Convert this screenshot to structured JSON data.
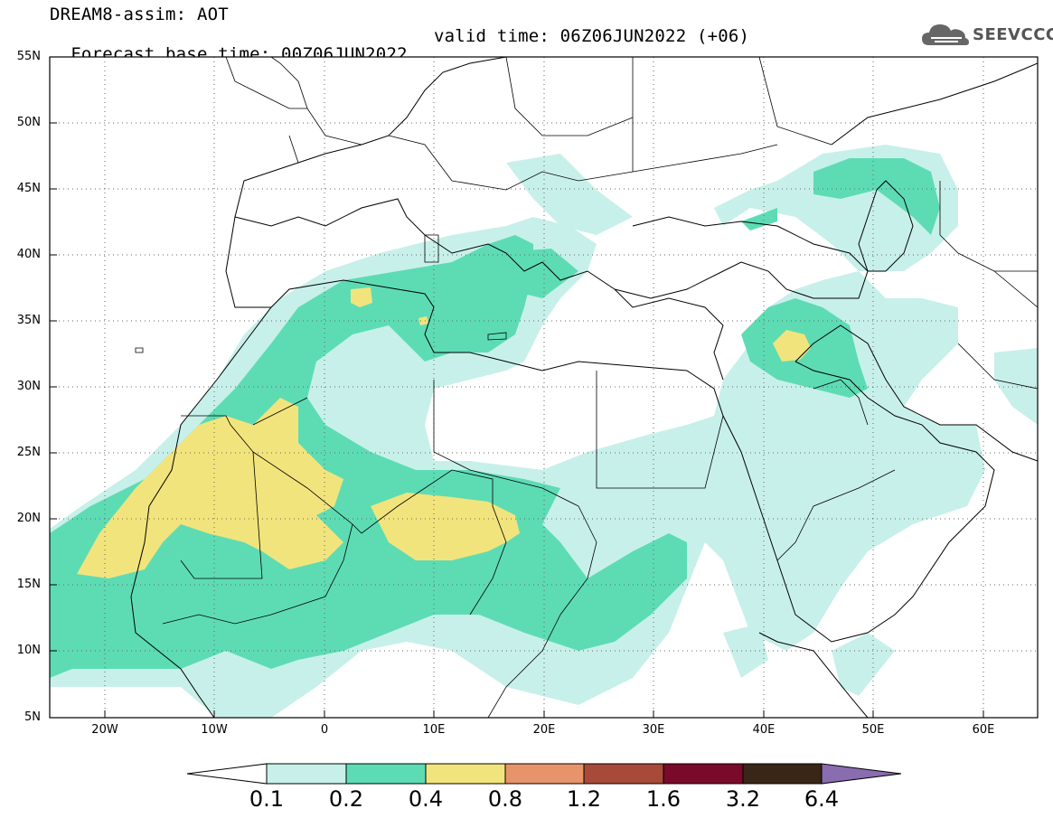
{
  "header": {
    "line1": "DREAM8-assim: AOT",
    "base_time": "Forecast base time: 00Z06JUN2022",
    "valid_time": "valid time: 06Z06JUN2022 (+06)"
  },
  "logo": {
    "text": "SEEVCCC",
    "icon": "cloud-icon"
  },
  "map": {
    "lat_labels": [
      "55N",
      "50N",
      "45N",
      "40N",
      "35N",
      "30N",
      "25N",
      "20N",
      "15N",
      "10N",
      "5N"
    ],
    "lon_labels": [
      "20W",
      "10W",
      "0",
      "10E",
      "20E",
      "30E",
      "40E",
      "50E",
      "60E"
    ],
    "gridlines": "dotted"
  },
  "colorbar": {
    "labels": [
      "0.1",
      "0.2",
      "0.4",
      "0.8",
      "1.2",
      "1.6",
      "3.2",
      "6.4"
    ],
    "colors": [
      "#c8f0ea",
      "#5ddcb4",
      "#f2e47c",
      "#e8946a",
      "#a84a3a",
      "#7a0a2a",
      "#3a2616",
      "#8a6cb0"
    ]
  }
}
